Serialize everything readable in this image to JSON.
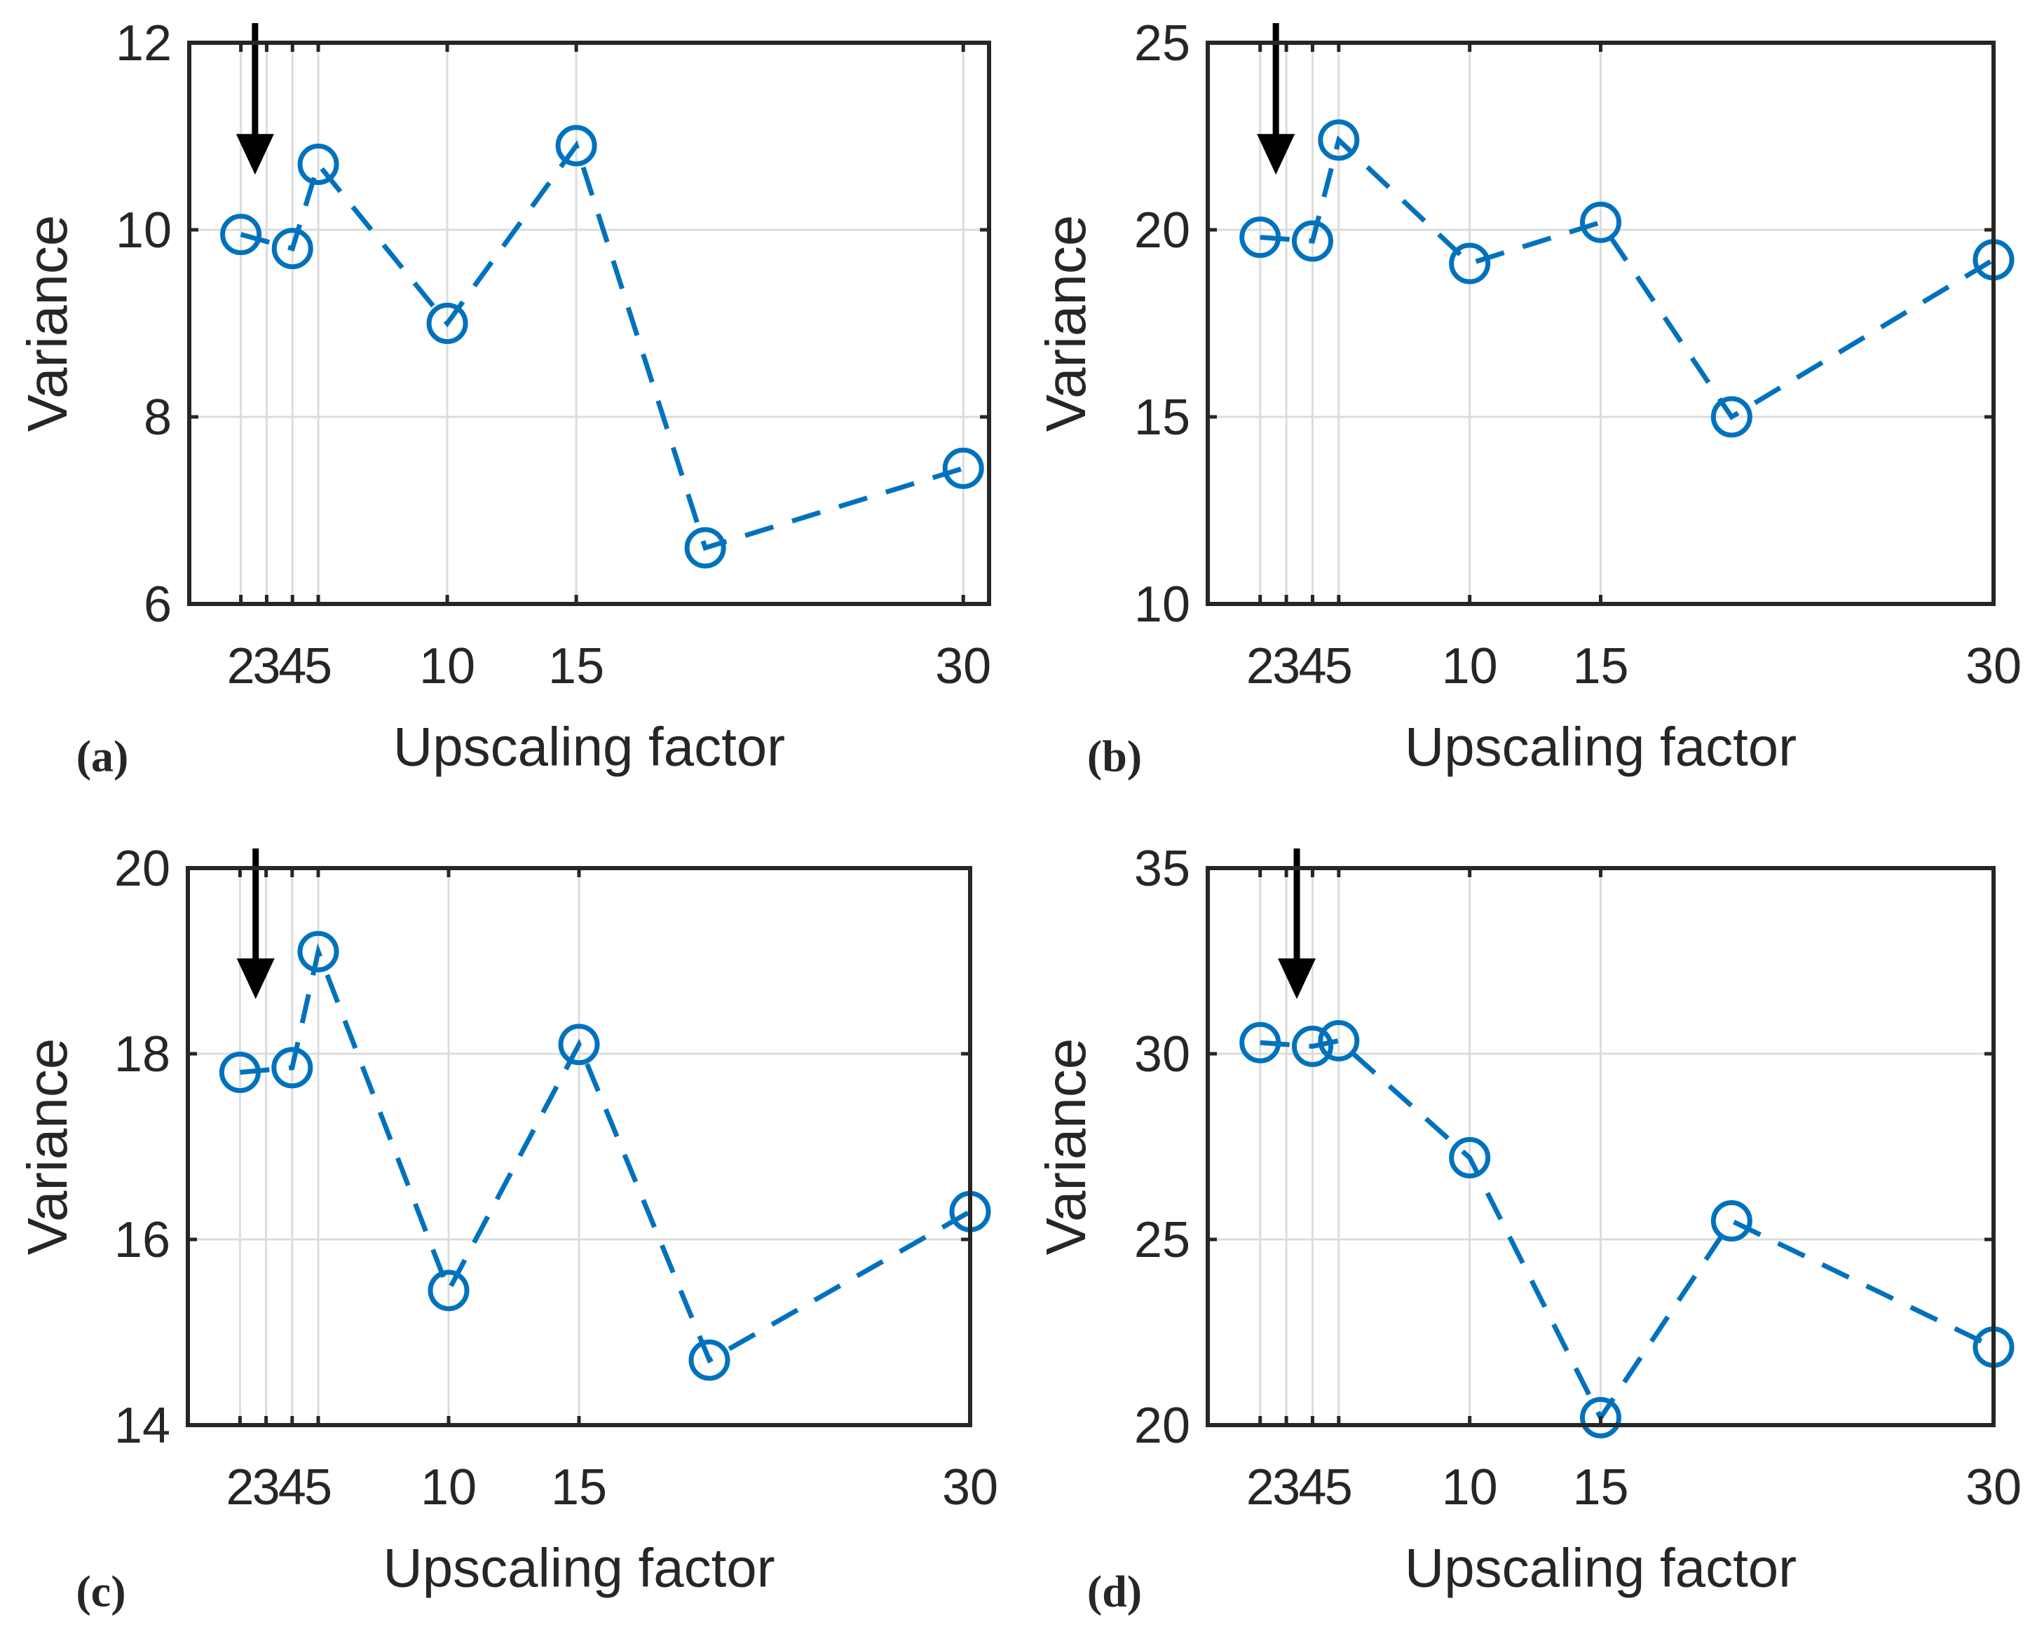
{
  "figure": {
    "background": "#ffffff",
    "line_color": "#0072BD",
    "axis_color": "#262626",
    "grid_color": "#dcdcdc",
    "arrow_color": "#000000"
  },
  "chart_data": [
    {
      "type": "line",
      "panel": "a",
      "caption": "(a)",
      "xlabel": "Upscaling factor",
      "ylabel": "Variance",
      "linestyle": "dashed",
      "marker": "circle",
      "legend": "none",
      "grid": true,
      "x": [
        2,
        4,
        5,
        10,
        15,
        20,
        30
      ],
      "y": [
        9.95,
        9.8,
        10.7,
        9.0,
        10.9,
        6.6,
        7.45
      ],
      "xticks": [
        2,
        3,
        4,
        5,
        10,
        15,
        30
      ],
      "yticks": [
        6,
        8,
        10,
        12
      ],
      "xlim": [
        0,
        31
      ],
      "ylim": [
        6,
        12
      ],
      "arrow_x": 2.55
    },
    {
      "type": "line",
      "panel": "b",
      "caption": "(b)",
      "xlabel": "Upscaling factor",
      "ylabel": "Variance",
      "linestyle": "dashed",
      "marker": "circle",
      "legend": "none",
      "grid": true,
      "x": [
        2,
        4,
        5,
        10,
        15,
        20,
        30
      ],
      "y": [
        19.8,
        19.7,
        22.4,
        19.1,
        20.2,
        15.0,
        19.2
      ],
      "xticks": [
        2,
        3,
        4,
        5,
        10,
        15,
        30
      ],
      "yticks": [
        10,
        15,
        20,
        25
      ],
      "xlim": [
        0,
        30
      ],
      "ylim": [
        10,
        25
      ],
      "arrow_x": 2.6
    },
    {
      "type": "line",
      "panel": "c",
      "caption": "(c)",
      "xlabel": "Upscaling factor",
      "ylabel": "Variance",
      "linestyle": "dashed",
      "marker": "circle",
      "legend": "none",
      "grid": true,
      "x": [
        2,
        4,
        5,
        10,
        15,
        20,
        30
      ],
      "y": [
        17.8,
        17.85,
        19.1,
        15.45,
        18.1,
        14.7,
        16.3
      ],
      "xticks": [
        2,
        3,
        4,
        5,
        10,
        15,
        30
      ],
      "yticks": [
        14,
        16,
        18,
        20
      ],
      "xlim": [
        0,
        30
      ],
      "ylim": [
        14,
        20
      ],
      "arrow_x": 2.6
    },
    {
      "type": "line",
      "panel": "d",
      "caption": "(d)",
      "xlabel": "Upscaling factor",
      "ylabel": "Variance",
      "linestyle": "dashed",
      "marker": "circle",
      "legend": "none",
      "grid": true,
      "x": [
        2,
        4,
        5,
        10,
        15,
        20,
        30
      ],
      "y": [
        30.3,
        30.2,
        30.35,
        27.2,
        20.2,
        25.5,
        22.1
      ],
      "xticks": [
        2,
        3,
        4,
        5,
        10,
        15,
        30
      ],
      "yticks": [
        20,
        25,
        30,
        35
      ],
      "xlim": [
        0,
        30
      ],
      "ylim": [
        20,
        35
      ],
      "arrow_x": 3.4
    }
  ]
}
